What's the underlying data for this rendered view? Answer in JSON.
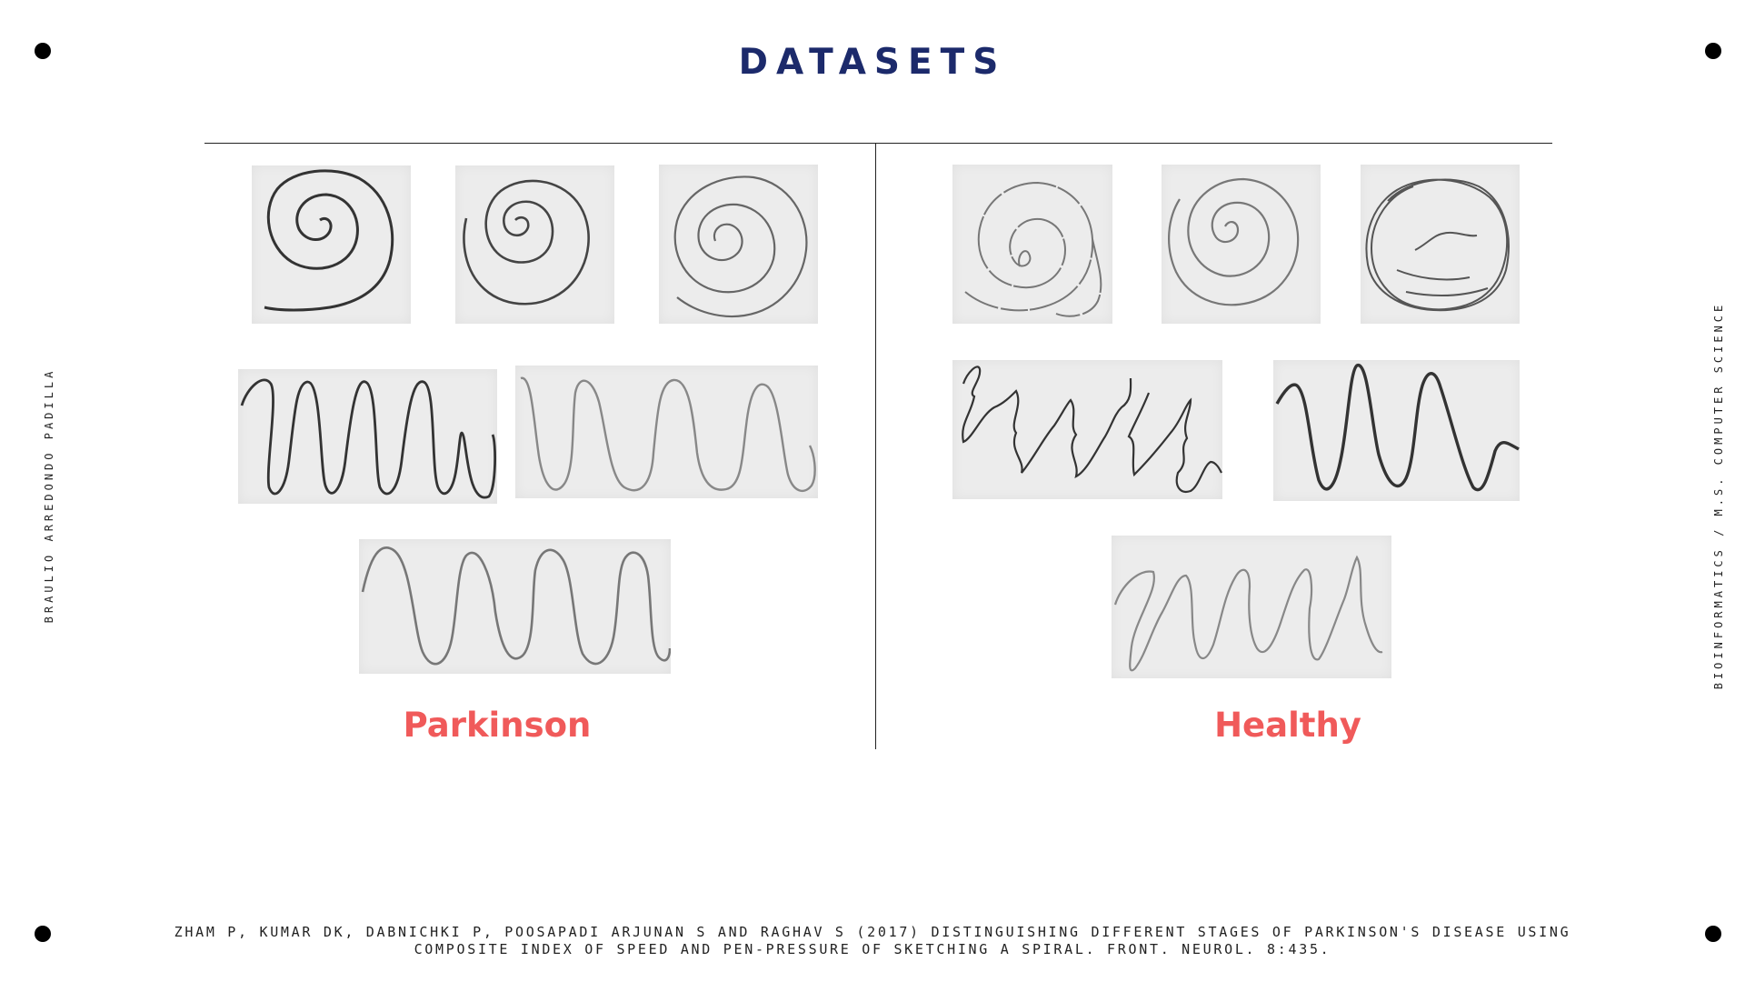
{
  "title": "DATASETS",
  "side_left": "BRAULIO ARREDONDO PADILLA",
  "side_right": "BIOINFORMATICS / M.S. COMPUTER SCIENCE",
  "labels": {
    "parkinson": "Parkinson",
    "healthy": "Healthy"
  },
  "citation": {
    "line1": "Zham P, Kumar DK, Dabnichki P, Poosapadi Arjunan S and Raghav S (2017) Distinguishing Different Stages of Parkinson's Disease Using",
    "line2": "Composite Index of Speed and Pen-Pressure of Sketching a Spiral. Front. Neurol. 8:435."
  },
  "colors": {
    "title": "#1c2a6b",
    "label": "#f05a5a"
  }
}
